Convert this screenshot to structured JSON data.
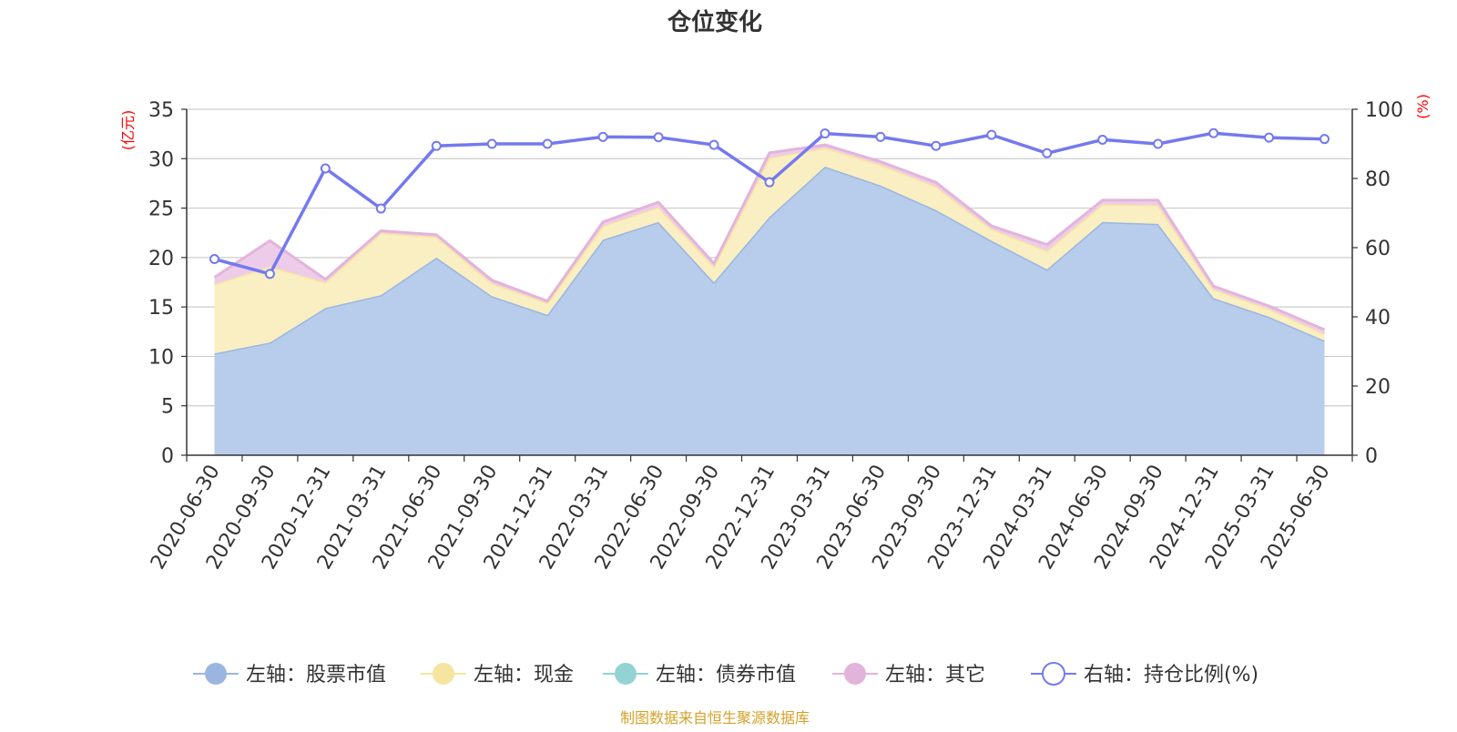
{
  "chart_data": {
    "type": "area",
    "title": "仓位变化",
    "left_axis_unit": "(亿元)",
    "right_axis_unit": "(%)",
    "ylim_left": [
      0,
      35
    ],
    "yticks_left": [
      0,
      5,
      10,
      15,
      20,
      25,
      30,
      35
    ],
    "ylim_right": [
      0,
      100
    ],
    "yticks_right": [
      0,
      20,
      40,
      60,
      80,
      100
    ],
    "grid": true,
    "legend_position": "bottom",
    "categories": [
      "2020-06-30",
      "2020-09-30",
      "2020-12-31",
      "2021-03-31",
      "2021-06-30",
      "2021-09-30",
      "2021-12-31",
      "2022-03-31",
      "2022-06-30",
      "2022-09-30",
      "2022-12-31",
      "2023-03-31",
      "2023-06-30",
      "2023-09-30",
      "2023-12-31",
      "2024-03-31",
      "2024-06-30",
      "2024-09-30",
      "2024-12-31",
      "2025-03-31",
      "2025-06-30"
    ],
    "series": [
      {
        "name": "左轴：股票市值",
        "axis": "left",
        "kind": "stacked-area",
        "color": "#9ab6e0",
        "fill": "#b8cceb",
        "values": [
          10.3,
          11.4,
          14.9,
          16.2,
          20.0,
          16.1,
          14.2,
          21.8,
          23.6,
          17.5,
          24.1,
          29.2,
          27.3,
          24.8,
          21.7,
          18.8,
          23.6,
          23.4,
          15.9,
          14.0,
          11.6
        ]
      },
      {
        "name": "左轴：现金",
        "axis": "left",
        "kind": "stacked-area",
        "color": "#f6e5a0",
        "fill": "#faefc2",
        "values": [
          7.0,
          7.7,
          2.6,
          6.3,
          2.1,
          1.3,
          1.2,
          1.4,
          1.5,
          1.6,
          6.0,
          1.9,
          2.1,
          2.4,
          1.2,
          1.9,
          1.8,
          1.9,
          0.9,
          0.8,
          0.7
        ]
      },
      {
        "name": "左轴：债券市值",
        "axis": "left",
        "kind": "stacked-area",
        "color": "#94d3d3",
        "fill": "#b4e2e2",
        "values": [
          0,
          0,
          0,
          0,
          0,
          0,
          0,
          0,
          0,
          0,
          0,
          0,
          0,
          0,
          0,
          0,
          0,
          0,
          0,
          0,
          0
        ]
      },
      {
        "name": "左轴：其它",
        "axis": "left",
        "kind": "stacked-area",
        "color": "#e3b4db",
        "fill": "#edccea",
        "values": [
          0.7,
          2.6,
          0.3,
          0.2,
          0.2,
          0.3,
          0.2,
          0.4,
          0.5,
          0.3,
          0.5,
          0.3,
          0.3,
          0.4,
          0.3,
          0.6,
          0.4,
          0.5,
          0.3,
          0.3,
          0.4
        ]
      },
      {
        "name": "右轴：持仓比例(%)",
        "axis": "right",
        "kind": "line",
        "color": "#7479ee",
        "values": [
          56.7,
          52.4,
          82.9,
          71.3,
          89.4,
          90.0,
          90.0,
          92.0,
          91.9,
          89.7,
          78.9,
          93.0,
          92.0,
          89.4,
          92.6,
          87.3,
          91.2,
          90.0,
          93.1,
          91.8,
          91.4
        ]
      }
    ],
    "source_note": "制图数据来自恒生聚源数据库"
  }
}
